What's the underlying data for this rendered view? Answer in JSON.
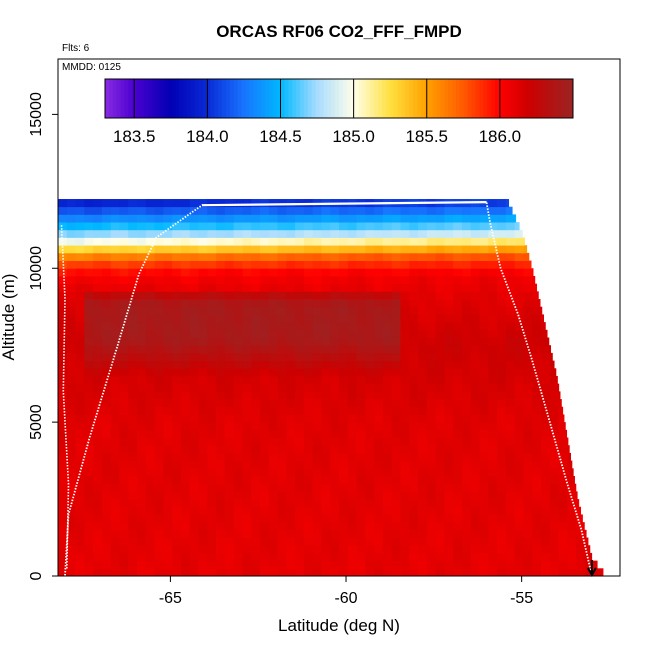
{
  "chart_data": {
    "type": "heatmap",
    "title": "ORCAS RF06 CO2_FFF_FMPD",
    "flights_note": "Flts: 6",
    "date_note": "MMDD: 0125",
    "xlabel": "Latitude (deg N)",
    "ylabel": "Altitude (m)",
    "xlim": [
      -68.2,
      -52.2
    ],
    "ylim": [
      0,
      16800
    ],
    "xticks": [
      -65,
      -60,
      -55
    ],
    "xtick_labels": [
      "-65",
      "-60",
      "-55"
    ],
    "yticks": [
      0,
      5000,
      10000,
      15000
    ],
    "ytick_labels": [
      "0",
      "5000",
      "10000",
      "15000"
    ],
    "colorbar": {
      "range": [
        183.3,
        186.5
      ],
      "ticks": [
        183.5,
        184.0,
        184.5,
        185.0,
        185.5,
        186.0
      ],
      "tick_labels": [
        "183.5",
        "184.0",
        "184.5",
        "185.0",
        "185.5",
        "186.0"
      ],
      "major_lines": [
        183.5,
        184.0,
        184.5,
        185.0,
        185.5,
        186.0
      ],
      "stops": [
        {
          "v": 183.3,
          "color": "#8a2be2"
        },
        {
          "v": 183.5,
          "color": "#4b00d0"
        },
        {
          "v": 183.75,
          "color": "#0000b4"
        },
        {
          "v": 184.0,
          "color": "#0a2ad6"
        },
        {
          "v": 184.25,
          "color": "#1874ff"
        },
        {
          "v": 184.5,
          "color": "#00b8ff"
        },
        {
          "v": 184.75,
          "color": "#a8dcff"
        },
        {
          "v": 185.0,
          "color": "#ffffe8"
        },
        {
          "v": 185.25,
          "color": "#ffe040"
        },
        {
          "v": 185.5,
          "color": "#ffa000"
        },
        {
          "v": 185.75,
          "color": "#ff5a00"
        },
        {
          "v": 186.0,
          "color": "#ff0000"
        },
        {
          "v": 186.2,
          "color": "#cc0000"
        },
        {
          "v": 186.5,
          "color": "#9b2424"
        }
      ]
    },
    "field": {
      "lat_range": [
        -68.2,
        -53.0
      ],
      "alt_top": 12200,
      "lat_step": 0.25,
      "alt_step": 250,
      "right_edge": [
        {
          "alt": 0,
          "lat": -52.6
        },
        {
          "alt": 600,
          "lat": -53.0
        },
        {
          "alt": 2500,
          "lat": -53.4
        },
        {
          "alt": 4500,
          "lat": -53.7
        },
        {
          "alt": 6500,
          "lat": -54.0
        },
        {
          "alt": 8500,
          "lat": -54.4
        },
        {
          "alt": 10000,
          "lat": -54.7
        },
        {
          "alt": 11200,
          "lat": -55.0
        },
        {
          "alt": 12200,
          "lat": -55.4
        }
      ],
      "profile_by_altitude": [
        {
          "alt": 0,
          "v": 186.1
        },
        {
          "alt": 5000,
          "v": 186.12
        },
        {
          "alt": 7500,
          "v": 186.2
        },
        {
          "alt": 9300,
          "v": 186.1
        },
        {
          "alt": 9800,
          "v": 186.0
        },
        {
          "alt": 10250,
          "v": 185.75
        },
        {
          "alt": 10600,
          "v": 185.3
        },
        {
          "alt": 11000,
          "v": 184.8
        },
        {
          "alt": 11500,
          "v": 184.4
        },
        {
          "alt": 12200,
          "v": 183.9
        }
      ],
      "dark_core": {
        "lat": [
          -67.5,
          -58.5
        ],
        "alt": [
          6500,
          9300
        ],
        "v": 186.42
      }
    },
    "flight_track": [
      {
        "lat": -53.0,
        "alt": 0
      },
      {
        "lat": -53.3,
        "alt": 1500
      },
      {
        "lat": -53.7,
        "alt": 3000
      },
      {
        "lat": -54.2,
        "alt": 5000
      },
      {
        "lat": -54.7,
        "alt": 7000
      },
      {
        "lat": -55.1,
        "alt": 8500
      },
      {
        "lat": -55.6,
        "alt": 10000
      },
      {
        "lat": -55.9,
        "alt": 11500
      },
      {
        "lat": -56.0,
        "alt": 12150
      },
      {
        "lat": -60.0,
        "alt": 12100
      },
      {
        "lat": -64.1,
        "alt": 12050
      },
      {
        "lat": -65.4,
        "alt": 11000
      },
      {
        "lat": -65.9,
        "alt": 9800
      },
      {
        "lat": -66.5,
        "alt": 7500
      },
      {
        "lat": -67.3,
        "alt": 4500
      },
      {
        "lat": -67.9,
        "alt": 2000
      },
      {
        "lat": -68.0,
        "alt": 0
      }
    ],
    "flight_track_left": [
      {
        "lat": -68.1,
        "alt": 11400
      },
      {
        "lat": -68.0,
        "alt": 9000
      },
      {
        "lat": -68.05,
        "alt": 6000
      },
      {
        "lat": -67.9,
        "alt": 3000
      },
      {
        "lat": -67.95,
        "alt": 200
      }
    ],
    "end_marker": {
      "lat": -53.0,
      "alt": 0
    }
  }
}
